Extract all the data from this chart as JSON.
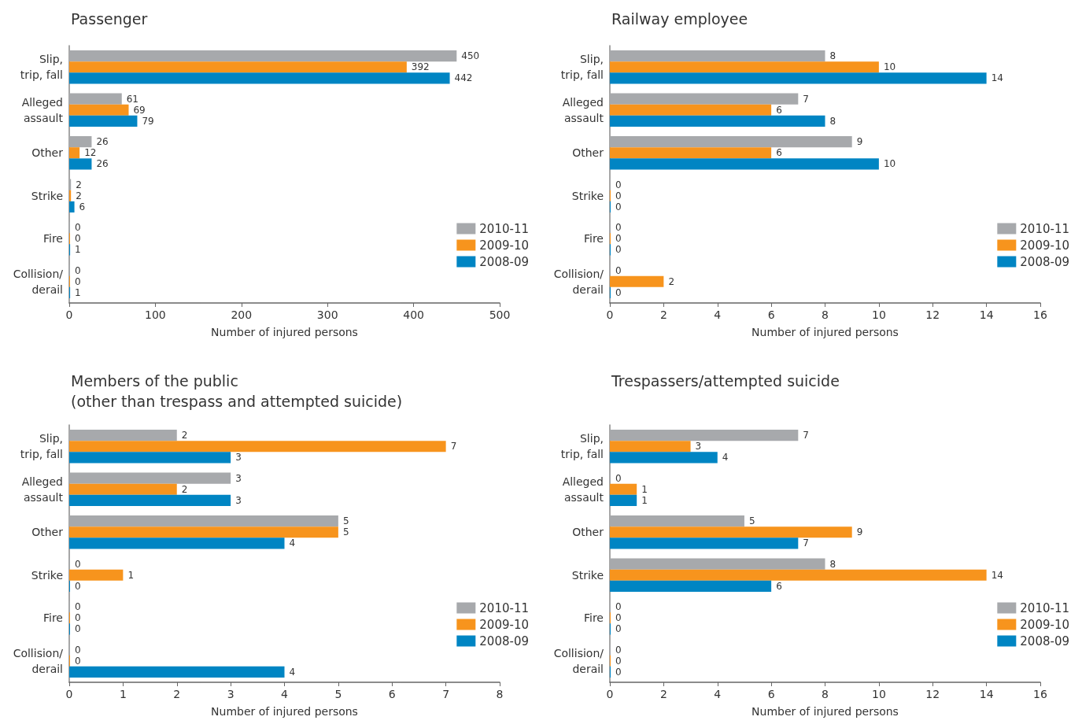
{
  "chart_data": [
    {
      "type": "bar",
      "orientation": "horizontal",
      "title": "Passenger",
      "xlabel": "Number of injured persons",
      "categories": [
        "Slip,\ntrip, fall",
        "Alleged\nassault",
        "Other",
        "Strike",
        "Fire",
        "Collision/\nderail"
      ],
      "series": [
        {
          "name": "2010-11",
          "color": "#a7a9ac",
          "values": [
            450,
            61,
            26,
            2,
            0,
            0
          ]
        },
        {
          "name": "2009-10",
          "color": "#f7941d",
          "values": [
            392,
            69,
            12,
            2,
            0,
            0
          ]
        },
        {
          "name": "2008-09",
          "color": "#0085c3",
          "values": [
            442,
            79,
            26,
            6,
            1,
            1
          ]
        }
      ],
      "xlim": [
        0,
        500
      ],
      "xticks": [
        0,
        100,
        200,
        300,
        400,
        500
      ],
      "data_labels": true,
      "grid": false,
      "legend": "bottom right"
    },
    {
      "type": "bar",
      "orientation": "horizontal",
      "title": "Railway employee",
      "xlabel": "Number of injured persons",
      "categories": [
        "Slip,\ntrip, fall",
        "Alleged\nassault",
        "Other",
        "Strike",
        "Fire",
        "Collision/\nderail"
      ],
      "series": [
        {
          "name": "2010-11",
          "color": "#a7a9ac",
          "values": [
            8,
            7,
            9,
            0,
            0,
            0
          ]
        },
        {
          "name": "2009-10",
          "color": "#f7941d",
          "values": [
            10,
            6,
            6,
            0,
            0,
            2
          ]
        },
        {
          "name": "2008-09",
          "color": "#0085c3",
          "values": [
            14,
            8,
            10,
            0,
            0,
            0
          ]
        }
      ],
      "xlim": [
        0,
        16
      ],
      "xticks": [
        0,
        2,
        4,
        6,
        8,
        10,
        12,
        14,
        16
      ],
      "data_labels": true,
      "grid": false,
      "legend": "bottom right"
    },
    {
      "type": "bar",
      "orientation": "horizontal",
      "title": "Members of the public\n(other than trespass and attempted suicide)",
      "xlabel": "Number of injured persons",
      "categories": [
        "Slip,\ntrip, fall",
        "Alleged\nassault",
        "Other",
        "Strike",
        "Fire",
        "Collision/\nderail"
      ],
      "series": [
        {
          "name": "2010-11",
          "color": "#a7a9ac",
          "values": [
            2,
            3,
            5,
            0,
            0,
            0
          ]
        },
        {
          "name": "2009-10",
          "color": "#f7941d",
          "values": [
            7,
            2,
            5,
            1,
            0,
            0
          ]
        },
        {
          "name": "2008-09",
          "color": "#0085c3",
          "values": [
            3,
            3,
            4,
            0,
            0,
            4
          ]
        }
      ],
      "xlim": [
        0,
        8
      ],
      "xticks": [
        0,
        1,
        2,
        3,
        4,
        5,
        6,
        7,
        8
      ],
      "data_labels": true,
      "grid": false,
      "legend": "bottom right"
    },
    {
      "type": "bar",
      "orientation": "horizontal",
      "title": "Trespassers/attempted suicide",
      "xlabel": "Number of injured persons",
      "categories": [
        "Slip,\ntrip, fall",
        "Alleged\nassault",
        "Other",
        "Strike",
        "Fire",
        "Collision/\nderail"
      ],
      "series": [
        {
          "name": "2010-11",
          "color": "#a7a9ac",
          "values": [
            7,
            0,
            5,
            8,
            0,
            0
          ]
        },
        {
          "name": "2009-10",
          "color": "#f7941d",
          "values": [
            3,
            1,
            9,
            14,
            0,
            0
          ]
        },
        {
          "name": "2008-09",
          "color": "#0085c3",
          "values": [
            4,
            1,
            7,
            6,
            0,
            0
          ]
        }
      ],
      "xlim": [
        0,
        16
      ],
      "xticks": [
        0,
        2,
        4,
        6,
        8,
        10,
        12,
        14,
        16
      ],
      "data_labels": true,
      "grid": false,
      "legend": "bottom right"
    }
  ]
}
